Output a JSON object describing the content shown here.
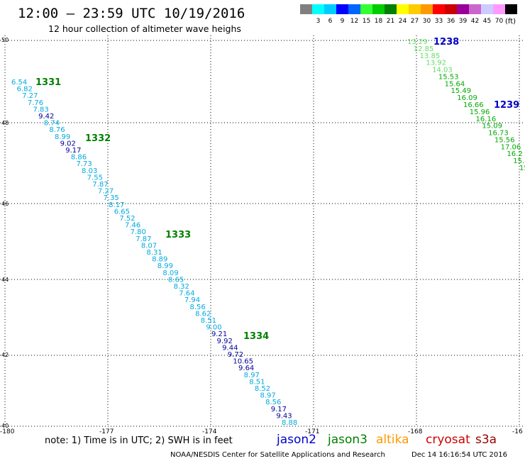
{
  "header": {
    "title": "12:00 — 23:59 UTC 10/19/2016",
    "subtitle": "12 hour collection of altimeter wave heighs"
  },
  "colorbar": {
    "units": "(ft)",
    "colors": [
      "#808080",
      "#00ffff",
      "#00ccff",
      "#0000ff",
      "#0066ff",
      "#33ff33",
      "#00cc00",
      "#008000",
      "#ffff00",
      "#ffcc00",
      "#ff9900",
      "#ff0000",
      "#cc0000",
      "#990099",
      "#cc66cc",
      "#ccccff",
      "#ff99ff",
      "#000000"
    ],
    "labels": [
      "3",
      "6",
      "9",
      "12",
      "15",
      "18",
      "21",
      "24",
      "27",
      "30",
      "33",
      "36",
      "39",
      "42",
      "45",
      "70"
    ]
  },
  "axes": {
    "lon_ticks": [
      "-180",
      "-177",
      "-174",
      "-171",
      "-168",
      "-16"
    ],
    "lat_ticks": [
      "50",
      "48",
      "46",
      "44",
      "42",
      "40"
    ]
  },
  "footer": {
    "note": "note: 1) Time is in UTC; 2) SWH is in feet",
    "credit": "NOAA/NESDIS Center for Satellite Applications and Research",
    "timestamp": "Dec 14 16:16:54 UTC 2016"
  },
  "legend": [
    {
      "label": "jason2",
      "color": "#0000cc"
    },
    {
      "label": "jason3",
      "color": "#008000"
    },
    {
      "label": "altika",
      "color": "#ff9900"
    },
    {
      "label": "cryosat",
      "color": "#cc0000"
    },
    {
      "label": "s3a",
      "color": "#990000"
    }
  ],
  "tracks": [
    {
      "label": "1331",
      "color": "#008000"
    },
    {
      "label": "1332",
      "color": "#008000"
    },
    {
      "label": "1333",
      "color": "#008000"
    },
    {
      "label": "1334",
      "color": "#008000"
    },
    {
      "label": "1238",
      "color": "#0000cc"
    },
    {
      "label": "1239",
      "color": "#0000cc"
    }
  ],
  "readings_a": [
    {
      "v": "6.54",
      "c": "#00aadd"
    },
    {
      "v": "6.82",
      "c": "#00aadd"
    },
    {
      "v": "7.27",
      "c": "#00aadd"
    },
    {
      "v": "7.76",
      "c": "#00aadd"
    },
    {
      "v": "7.83",
      "c": "#00aadd"
    },
    {
      "v": "9.42",
      "c": "#000099"
    },
    {
      "v": "8.74",
      "c": "#00aadd"
    },
    {
      "v": "8.76",
      "c": "#00aadd"
    },
    {
      "v": "8.99",
      "c": "#00aadd"
    },
    {
      "v": "9.02",
      "c": "#000099"
    },
    {
      "v": "9.17",
      "c": "#000099"
    },
    {
      "v": "8.86",
      "c": "#00aadd"
    },
    {
      "v": "7.73",
      "c": "#00aadd"
    },
    {
      "v": "8.03",
      "c": "#00aadd"
    },
    {
      "v": "7.55",
      "c": "#00aadd"
    },
    {
      "v": "7.87",
      "c": "#00aadd"
    },
    {
      "v": "7.27",
      "c": "#00aadd"
    },
    {
      "v": "7.35",
      "c": "#00aadd"
    },
    {
      "v": "8.17",
      "c": "#00aadd"
    },
    {
      "v": "6.65",
      "c": "#00aadd"
    },
    {
      "v": "7.52",
      "c": "#00aadd"
    },
    {
      "v": "7.46",
      "c": "#00aadd"
    },
    {
      "v": "7.80",
      "c": "#00aadd"
    },
    {
      "v": "7.87",
      "c": "#00aadd"
    },
    {
      "v": "8.07",
      "c": "#00aadd"
    },
    {
      "v": "8.31",
      "c": "#00aadd"
    },
    {
      "v": "8.89",
      "c": "#00aadd"
    },
    {
      "v": "8.99",
      "c": "#00aadd"
    },
    {
      "v": "8.09",
      "c": "#00aadd"
    },
    {
      "v": "8.65",
      "c": "#00aadd"
    },
    {
      "v": "8.32",
      "c": "#00aadd"
    },
    {
      "v": "7.64",
      "c": "#00aadd"
    },
    {
      "v": "7.94",
      "c": "#00aadd"
    },
    {
      "v": "8.56",
      "c": "#00aadd"
    },
    {
      "v": "8.62",
      "c": "#00aadd"
    },
    {
      "v": "8.51",
      "c": "#00aadd"
    },
    {
      "v": "9.00",
      "c": "#00aadd"
    },
    {
      "v": "9.21",
      "c": "#000099"
    },
    {
      "v": "9.92",
      "c": "#000099"
    },
    {
      "v": "9.44",
      "c": "#000099"
    },
    {
      "v": "9.72",
      "c": "#000099"
    },
    {
      "v": "10.65",
      "c": "#000099"
    },
    {
      "v": "9.64",
      "c": "#000099"
    },
    {
      "v": "8.97",
      "c": "#00aadd"
    },
    {
      "v": "8.51",
      "c": "#00aadd"
    },
    {
      "v": "8.52",
      "c": "#00aadd"
    },
    {
      "v": "8.97",
      "c": "#00aadd"
    },
    {
      "v": "8.56",
      "c": "#00aadd"
    },
    {
      "v": "9.17",
      "c": "#000099"
    },
    {
      "v": "9.43",
      "c": "#000099"
    },
    {
      "v": "8.88",
      "c": "#00aadd"
    }
  ],
  "readings_b": [
    {
      "v": "13.29",
      "c": "#66dd66"
    },
    {
      "v": "12.85",
      "c": "#66dd66"
    },
    {
      "v": "13.85",
      "c": "#66dd66"
    },
    {
      "v": "13.92",
      "c": "#66dd66"
    },
    {
      "v": "14.03",
      "c": "#66dd66"
    },
    {
      "v": "15.53",
      "c": "#00aa00"
    },
    {
      "v": "15.64",
      "c": "#00aa00"
    },
    {
      "v": "15.49",
      "c": "#00aa00"
    },
    {
      "v": "16.09",
      "c": "#00aa00"
    },
    {
      "v": "16.66",
      "c": "#00aa00"
    },
    {
      "v": "15.96",
      "c": "#00aa00"
    },
    {
      "v": "16.16",
      "c": "#00aa00"
    },
    {
      "v": "15.09",
      "c": "#00aa00"
    },
    {
      "v": "16.73",
      "c": "#00aa00"
    },
    {
      "v": "15.56",
      "c": "#00aa00"
    },
    {
      "v": "17.06",
      "c": "#00aa00"
    },
    {
      "v": "16.2",
      "c": "#00aa00"
    },
    {
      "v": "15.",
      "c": "#00aa00"
    },
    {
      "v": "15",
      "c": "#00aa00"
    }
  ]
}
